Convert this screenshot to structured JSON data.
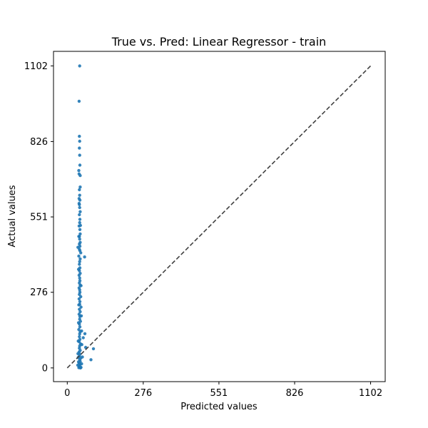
{
  "chart_data": {
    "type": "scatter",
    "title": "True vs. Pred: Linear Regressor - train",
    "xlabel": "Predicted values",
    "ylabel": "Actual values",
    "xlim": [
      -50,
      1155
    ],
    "ylim": [
      -50,
      1155
    ],
    "xticks": [
      0,
      276,
      551,
      826,
      1102
    ],
    "yticks": [
      0,
      276,
      551,
      826,
      1102
    ],
    "xtick_labels": [
      "0",
      "276",
      "551",
      "826",
      "1102"
    ],
    "ytick_labels": [
      "0",
      "276",
      "551",
      "826",
      "1102"
    ],
    "grid": false,
    "point_color": "#1f77b4",
    "reference_line": {
      "x": [
        0,
        1102
      ],
      "y": [
        0,
        1102
      ],
      "style": "dashed",
      "color": "#404040"
    },
    "series": [
      {
        "points": [
          [
            45,
            1102
          ],
          [
            43,
            973
          ],
          [
            44,
            845
          ],
          [
            45,
            827
          ],
          [
            44,
            802
          ],
          [
            45,
            776
          ],
          [
            46,
            740
          ],
          [
            42,
            720
          ],
          [
            47,
            702
          ],
          [
            43,
            708
          ],
          [
            44,
            650
          ],
          [
            45,
            630
          ],
          [
            43,
            618
          ],
          [
            46,
            612
          ],
          [
            44,
            596
          ],
          [
            45,
            585
          ],
          [
            47,
            570
          ],
          [
            44,
            559
          ],
          [
            46,
            542
          ],
          [
            45,
            530
          ],
          [
            43,
            518
          ],
          [
            46,
            505
          ],
          [
            47,
            489
          ],
          [
            44,
            480
          ],
          [
            45,
            470
          ],
          [
            47,
            458
          ],
          [
            44,
            452
          ],
          [
            46,
            444
          ],
          [
            44,
            433
          ],
          [
            39,
            440
          ],
          [
            46,
            428
          ],
          [
            63,
            405
          ],
          [
            42,
            408
          ],
          [
            47,
            398
          ],
          [
            45,
            388
          ],
          [
            44,
            378
          ],
          [
            46,
            365
          ],
          [
            44,
            355
          ],
          [
            47,
            345
          ],
          [
            43,
            338
          ],
          [
            45,
            328
          ],
          [
            46,
            318
          ],
          [
            44,
            310
          ],
          [
            47,
            302
          ],
          [
            43,
            292
          ],
          [
            45,
            285
          ],
          [
            46,
            276
          ],
          [
            44,
            268
          ],
          [
            49,
            260
          ],
          [
            43,
            252
          ],
          [
            46,
            242
          ],
          [
            45,
            232
          ],
          [
            50,
            222
          ],
          [
            44,
            214
          ],
          [
            47,
            205
          ],
          [
            43,
            196
          ],
          [
            46,
            188
          ],
          [
            45,
            178
          ],
          [
            48,
            170
          ],
          [
            44,
            160
          ],
          [
            46,
            150
          ],
          [
            42,
            140
          ],
          [
            47,
            132
          ],
          [
            45,
            124
          ],
          [
            64,
            125
          ],
          [
            58,
            110
          ],
          [
            44,
            114
          ],
          [
            46,
            104
          ],
          [
            43,
            96
          ],
          [
            48,
            88
          ],
          [
            45,
            80
          ],
          [
            67,
            75
          ],
          [
            44,
            72
          ],
          [
            95,
            70
          ],
          [
            47,
            64
          ],
          [
            43,
            58
          ],
          [
            46,
            50
          ],
          [
            44,
            43
          ],
          [
            49,
            36
          ],
          [
            40,
            38
          ],
          [
            45,
            30
          ],
          [
            86,
            30
          ],
          [
            47,
            24
          ],
          [
            43,
            18
          ],
          [
            46,
            12
          ],
          [
            44,
            7
          ],
          [
            45,
            3
          ],
          [
            48,
            0
          ],
          [
            42,
            1
          ],
          [
            50,
            2
          ],
          [
            38,
            10
          ],
          [
            52,
            15
          ],
          [
            41,
            22
          ],
          [
            55,
            40
          ],
          [
            39,
            52
          ],
          [
            53,
            85
          ],
          [
            40,
            98
          ],
          [
            52,
            135
          ],
          [
            41,
            165
          ],
          [
            51,
            190
          ],
          [
            42,
            230
          ],
          [
            50,
            300
          ],
          [
            41,
            360
          ],
          [
            49,
            420
          ],
          [
            42,
            480
          ],
          [
            48,
            520
          ],
          [
            43,
            600
          ],
          [
            47,
            660
          ]
        ]
      }
    ]
  }
}
